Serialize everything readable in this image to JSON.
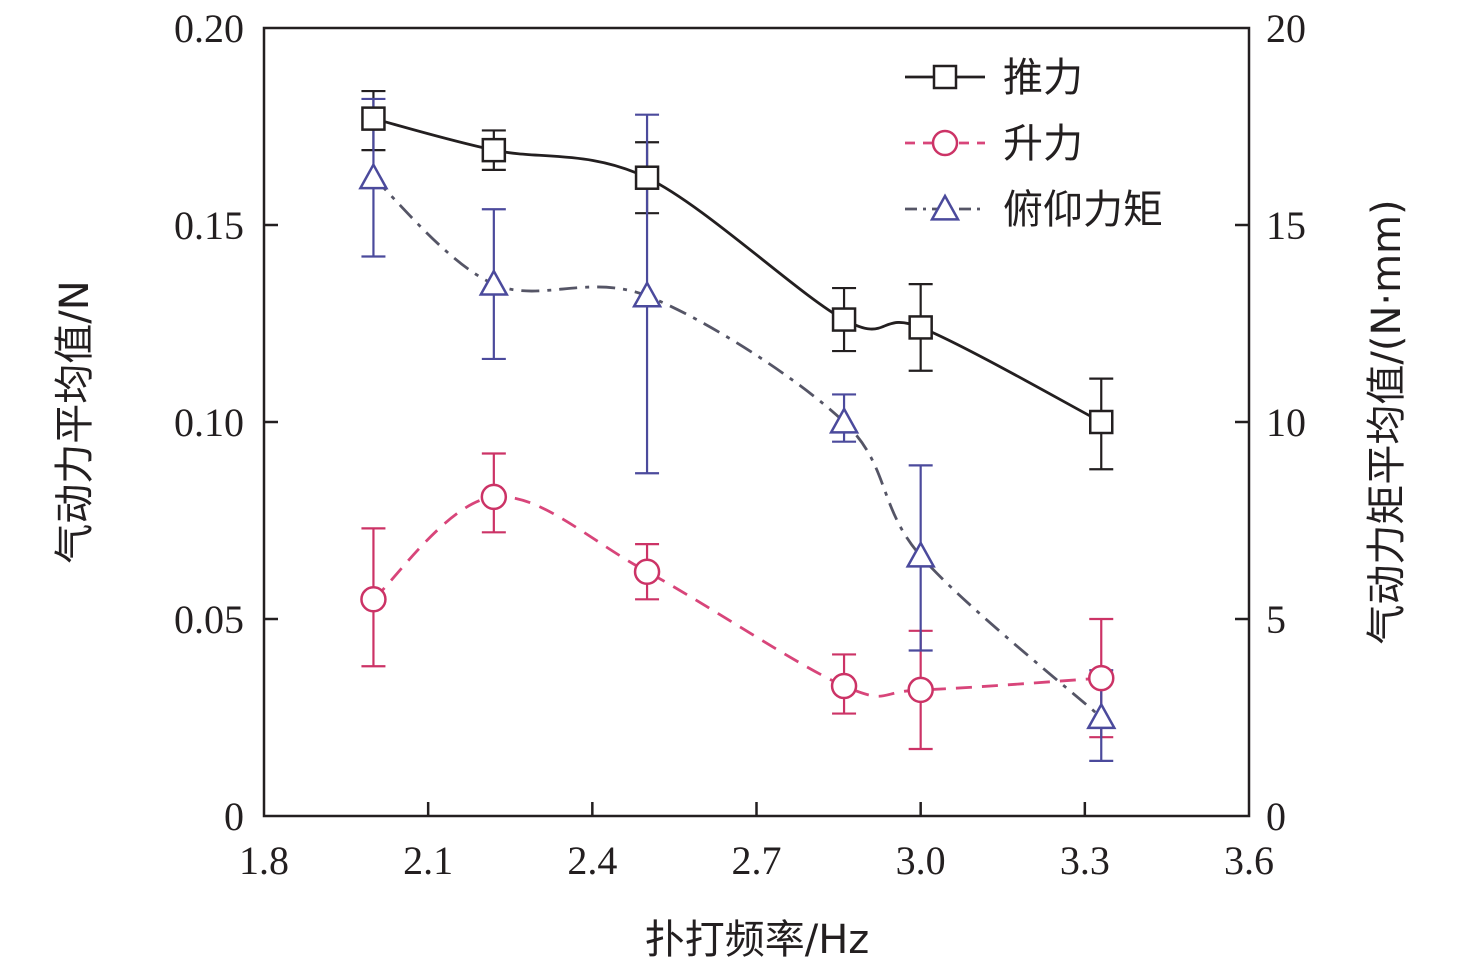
{
  "chart_data": {
    "type": "line",
    "xlabel": "扑打频率/Hz",
    "ylabel_left": "气动力平均值/N",
    "ylabel_right": "气动力矩平均值/(N·mm)",
    "xlim": [
      1.8,
      3.6
    ],
    "ylim_left": [
      0,
      0.2
    ],
    "ylim_right": [
      0,
      20
    ],
    "x_ticks": [
      "1.8",
      "2.1",
      "2.4",
      "2.7",
      "3.0",
      "3.3",
      "3.6"
    ],
    "y_ticks_left": [
      "0",
      "0.05",
      "0.10",
      "0.15",
      "0.20"
    ],
    "y_ticks_right": [
      "0",
      "5",
      "10",
      "15",
      "20"
    ],
    "grid": false,
    "legend_position": "top-right",
    "series": [
      {
        "name": "推力",
        "axis": "left",
        "marker": "square",
        "line_style": "solid",
        "color": "#231f20",
        "x": [
          2.0,
          2.22,
          2.5,
          2.86,
          3.0,
          3.33
        ],
        "y": [
          0.177,
          0.169,
          0.162,
          0.126,
          0.124,
          0.1
        ],
        "err_low": [
          0.169,
          0.164,
          0.153,
          0.118,
          0.113,
          0.088
        ],
        "err_high": [
          0.184,
          0.174,
          0.171,
          0.134,
          0.135,
          0.111
        ]
      },
      {
        "name": "升力",
        "axis": "left",
        "marker": "circle",
        "line_style": "dashed",
        "color": "#cc3366",
        "x": [
          2.0,
          2.22,
          2.5,
          2.86,
          3.0,
          3.33
        ],
        "y": [
          0.055,
          0.081,
          0.062,
          0.033,
          0.032,
          0.035
        ],
        "err_low": [
          0.038,
          0.072,
          0.055,
          0.026,
          0.017,
          0.02
        ],
        "err_high": [
          0.073,
          0.092,
          0.069,
          0.041,
          0.047,
          0.05
        ]
      },
      {
        "name": "俯仰力矩",
        "axis": "right",
        "marker": "triangle",
        "line_style": "dash-dot",
        "color": "#4b4a9c",
        "x": [
          2.0,
          2.22,
          2.5,
          2.86,
          3.0,
          3.33
        ],
        "y": [
          16.2,
          13.5,
          13.2,
          10.0,
          6.6,
          2.5
        ],
        "err_low": [
          14.2,
          11.6,
          8.7,
          9.5,
          4.2,
          1.4
        ],
        "err_high": [
          18.2,
          15.4,
          17.8,
          10.7,
          8.9,
          3.7
        ]
      }
    ]
  }
}
